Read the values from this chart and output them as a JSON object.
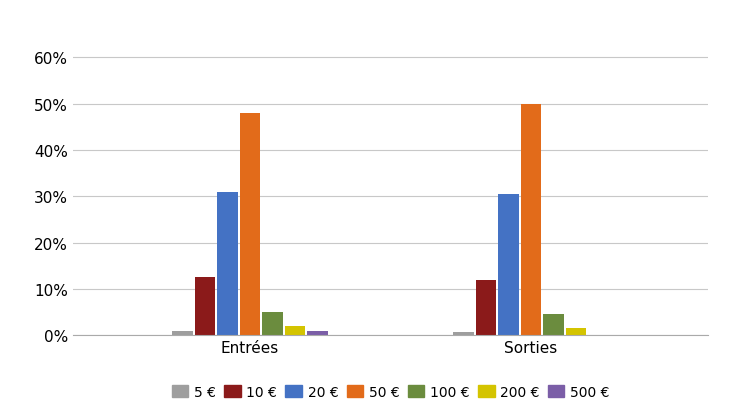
{
  "categories": [
    "Entrées",
    "Sorties"
  ],
  "series": [
    {
      "label": "5 €",
      "color": "#9E9E9E",
      "values": [
        1.0,
        0.6
      ]
    },
    {
      "label": "10 €",
      "color": "#8B1A1A",
      "values": [
        12.5,
        12.0
      ]
    },
    {
      "label": "20 €",
      "color": "#4472C4",
      "values": [
        31.0,
        30.5
      ]
    },
    {
      "label": "50 €",
      "color": "#E26B1A",
      "values": [
        48.0,
        50.0
      ]
    },
    {
      "label": "100 €",
      "color": "#6B8C3E",
      "values": [
        5.0,
        4.5
      ]
    },
    {
      "label": "200 €",
      "color": "#D4C400",
      "values": [
        2.0,
        1.5
      ]
    },
    {
      "label": "500 €",
      "color": "#7B5EA7",
      "values": [
        0.8,
        0.0
      ]
    }
  ],
  "ylim": [
    0,
    0.62
  ],
  "yticks": [
    0.0,
    0.1,
    0.2,
    0.3,
    0.4,
    0.5,
    0.6
  ],
  "ytick_labels": [
    "0%",
    "10%",
    "20%",
    "30%",
    "40%",
    "50%",
    "60%"
  ],
  "background_color": "#ffffff",
  "grid_color": "#C8C8C8",
  "figsize": [
    7.3,
    4.1
  ],
  "dpi": 100
}
